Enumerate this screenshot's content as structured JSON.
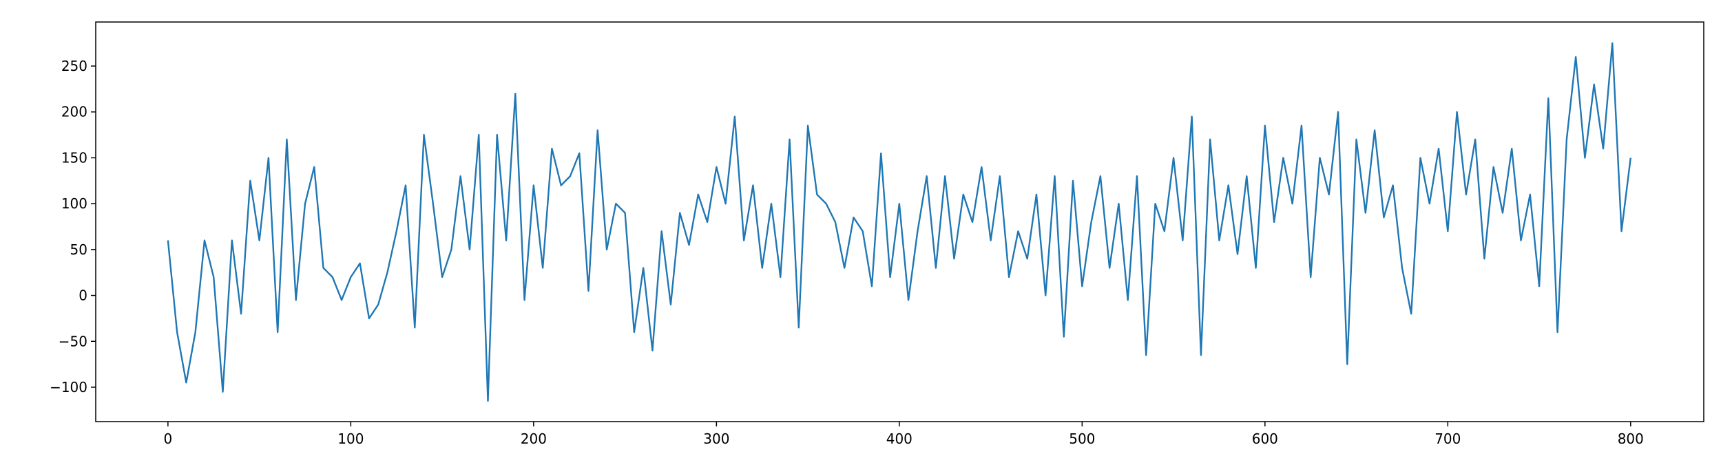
{
  "chart_data": {
    "type": "line",
    "x": [
      0,
      5,
      10,
      15,
      20,
      25,
      30,
      35,
      40,
      45,
      50,
      55,
      60,
      65,
      70,
      75,
      80,
      85,
      90,
      95,
      100,
      105,
      110,
      115,
      120,
      125,
      130,
      135,
      140,
      145,
      150,
      155,
      160,
      165,
      170,
      175,
      180,
      185,
      190,
      195,
      200,
      205,
      210,
      215,
      220,
      225,
      230,
      235,
      240,
      245,
      250,
      255,
      260,
      265,
      270,
      275,
      280,
      285,
      290,
      295,
      300,
      305,
      310,
      315,
      320,
      325,
      330,
      335,
      340,
      345,
      350,
      355,
      360,
      365,
      370,
      375,
      380,
      385,
      390,
      395,
      400,
      405,
      410,
      415,
      420,
      425,
      430,
      435,
      440,
      445,
      450,
      455,
      460,
      465,
      470,
      475,
      480,
      485,
      490,
      495,
      500,
      505,
      510,
      515,
      520,
      525,
      530,
      535,
      540,
      545,
      550,
      555,
      560,
      565,
      570,
      575,
      580,
      585,
      590,
      595,
      600,
      605,
      610,
      615,
      620,
      625,
      630,
      635,
      640,
      645,
      650,
      655,
      660,
      665,
      670,
      675,
      680,
      685,
      690,
      695,
      700,
      705,
      710,
      715,
      720,
      725,
      730,
      735,
      740,
      745,
      750,
      755,
      760,
      765,
      770,
      775,
      780,
      785,
      790,
      795,
      800
    ],
    "series": [
      {
        "color": "#1f77b4",
        "values": [
          60,
          -40,
          -95,
          -40,
          60,
          20,
          -105,
          60,
          -20,
          125,
          60,
          150,
          -40,
          170,
          -5,
          100,
          140,
          30,
          20,
          -5,
          20,
          35,
          -25,
          -10,
          25,
          70,
          120,
          -35,
          175,
          100,
          20,
          50,
          130,
          50,
          175,
          -115,
          175,
          60,
          220,
          -5,
          120,
          30,
          160,
          120,
          130,
          155,
          5,
          180,
          50,
          100,
          90,
          -40,
          30,
          -60,
          70,
          -10,
          90,
          55,
          110,
          80,
          140,
          100,
          195,
          60,
          120,
          30,
          100,
          20,
          170,
          -35,
          185,
          110,
          100,
          80,
          30,
          85,
          70,
          10,
          155,
          20,
          100,
          -5,
          70,
          130,
          30,
          130,
          40,
          110,
          80,
          140,
          60,
          130,
          20,
          70,
          40,
          110,
          0,
          130,
          -45,
          125,
          10,
          80,
          130,
          30,
          100,
          -5,
          130,
          -65,
          100,
          70,
          150,
          60,
          195,
          -65,
          170,
          60,
          120,
          45,
          130,
          30,
          185,
          80,
          150,
          100,
          185,
          20,
          150,
          110,
          200,
          -75,
          170,
          90,
          180,
          85,
          120,
          30,
          -20,
          150,
          100,
          160,
          70,
          200,
          110,
          170,
          40,
          140,
          90,
          160,
          60,
          110,
          10,
          215,
          -40,
          170,
          260,
          150,
          230,
          160,
          275,
          70,
          150
        ]
      }
    ],
    "xlim": [
      -39.5,
      840
    ],
    "ylim": [
      -137.5,
      298
    ],
    "xticks": [
      0,
      100,
      200,
      300,
      400,
      500,
      600,
      700,
      800
    ],
    "yticks": [
      {
        "value": -100,
        "label": "−100"
      },
      {
        "value": -50,
        "label": "−50"
      },
      0,
      50,
      100,
      150,
      200,
      250
    ]
  }
}
